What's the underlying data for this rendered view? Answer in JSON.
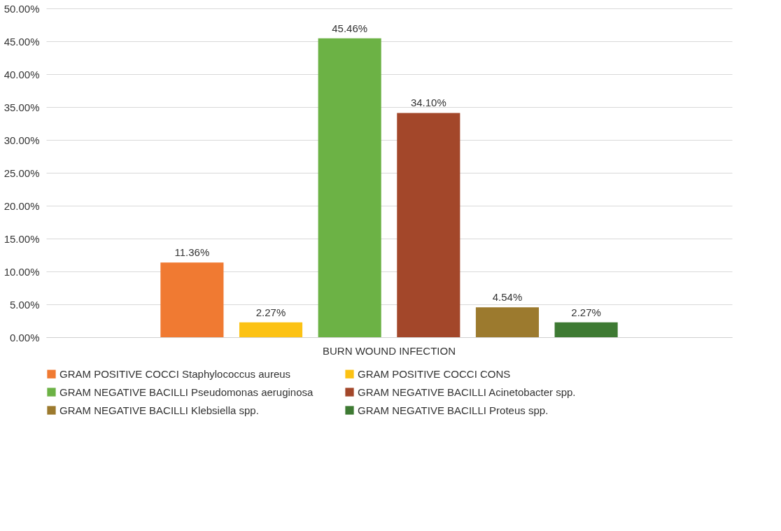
{
  "chart_data": {
    "type": "bar",
    "categories": [
      "BURN WOUND INFECTION"
    ],
    "series": [
      {
        "name": "GRAM  POSITIVE COCCI  Staphylococcus aureus",
        "color": "#f07a32",
        "values": [
          11.36
        ],
        "value_labels": [
          "11.36%"
        ]
      },
      {
        "name": "GRAM  POSITIVE COCCI CONS",
        "color": "#fcc214",
        "values": [
          2.27
        ],
        "value_labels": [
          "2.27%"
        ]
      },
      {
        "name": "GRAM  NEGATIVE BACILLI Pseudomonas aeruginosa",
        "color": "#6cb245",
        "values": [
          45.46
        ],
        "value_labels": [
          "45.46%"
        ]
      },
      {
        "name": "GRAM  NEGATIVE BACILLI  Acinetobacter spp.",
        "color": "#a3472a",
        "values": [
          34.1
        ],
        "value_labels": [
          "34.10%"
        ]
      },
      {
        "name": "GRAM  NEGATIVE BACILLI  Klebsiella spp.",
        "color": "#9c7a2e",
        "values": [
          4.54
        ],
        "value_labels": [
          "4.54%"
        ]
      },
      {
        "name": "GRAM  NEGATIVE BACILLI  Proteus spp.",
        "color": "#3e7a33",
        "values": [
          2.27
        ],
        "value_labels": [
          "2.27%"
        ]
      }
    ],
    "ylim": [
      0,
      50
    ],
    "yticks": [
      {
        "value": 0,
        "label": "0.00%"
      },
      {
        "value": 5,
        "label": "5.00%"
      },
      {
        "value": 10,
        "label": "10.00%"
      },
      {
        "value": 15,
        "label": "15.00%"
      },
      {
        "value": 20,
        "label": "20.00%"
      },
      {
        "value": 25,
        "label": "25.00%"
      },
      {
        "value": 30,
        "label": "30.00%"
      },
      {
        "value": 35,
        "label": "35.00%"
      },
      {
        "value": 40,
        "label": "40.00%"
      },
      {
        "value": 45,
        "label": "45.00%"
      },
      {
        "value": 50,
        "label": "50.00%"
      }
    ],
    "grid": "y",
    "legend": "bottom"
  }
}
